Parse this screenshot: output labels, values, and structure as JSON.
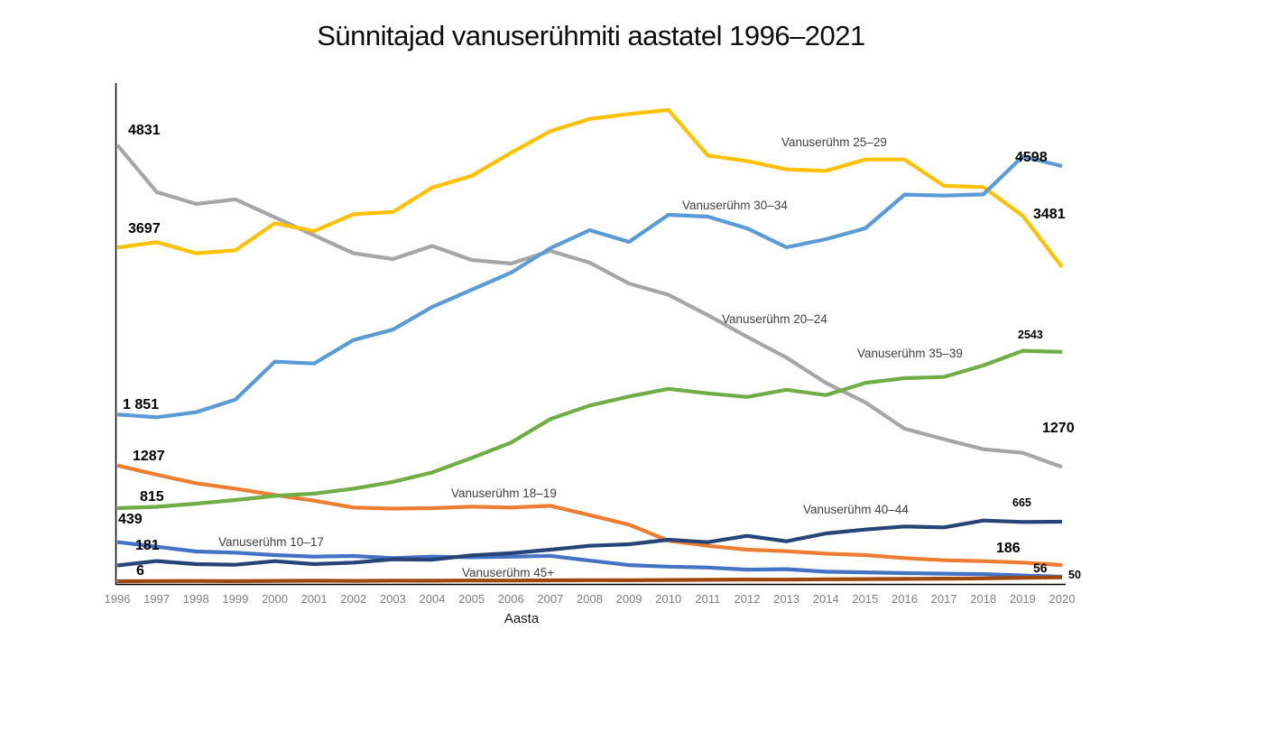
{
  "title": "Sünnitajad vanuserühmiti aastatel 1996–2021",
  "chart_data": {
    "type": "line",
    "title": "Sünnitajad vanuserühmiti aastatel 1996–2021",
    "xlabel": "Aasta",
    "ylabel": "",
    "grid": false,
    "legend_position": "inline-labels",
    "ylim": [
      0,
      5540
    ],
    "x": [
      1996,
      1997,
      1998,
      1999,
      2000,
      2001,
      2002,
      2003,
      2004,
      2005,
      2006,
      2007,
      2008,
      2009,
      2010,
      2011,
      2012,
      2013,
      2014,
      2015,
      2016,
      2017,
      2018,
      2019,
      2020
    ],
    "series": [
      {
        "name": "Vanuserühm 10–17",
        "color": "#4472C4",
        "values": [
          439,
          388,
          335,
          322,
          296,
          279,
          286,
          263,
          279,
          272,
          278,
          288,
          235,
          185,
          168,
          158,
          135,
          140,
          112,
          105,
          96,
          90,
          85,
          70,
          56
        ]
      },
      {
        "name": "Vanuserühm 18–19",
        "color": "#ED7D31",
        "values": [
          1287,
          1185,
          1090,
          1030,
          960,
          898,
          822,
          810,
          815,
          832,
          822,
          841,
          738,
          632,
          455,
          398,
          355,
          338,
          312,
          296,
          263,
          239,
          229,
          213,
          186
        ]
      },
      {
        "name": "Vanuserühm 20–24",
        "color": "#A6A6A6",
        "values": [
          4831,
          4312,
          4180,
          4230,
          4033,
          3833,
          3634,
          3570,
          3715,
          3560,
          3520,
          3660,
          3530,
          3300,
          3175,
          2950,
          2710,
          2480,
          2200,
          1986,
          1693,
          1577,
          1467,
          1427,
          1270
        ]
      },
      {
        "name": "Vanuserühm 25–29",
        "color": "#FFC000",
        "values": [
          3697,
          3757,
          3634,
          3667,
          3967,
          3880,
          4066,
          4090,
          4360,
          4490,
          4745,
          4985,
          5120,
          5175,
          5220,
          4715,
          4655,
          4562,
          4546,
          4672,
          4672,
          4380,
          4366,
          4050,
          3481
        ]
      },
      {
        "name": "Vanuserühm 30–34",
        "color": "#5B9BD5",
        "values": [
          1851,
          1820,
          1876,
          2016,
          2435,
          2415,
          2675,
          2790,
          3040,
          3230,
          3420,
          3690,
          3890,
          3760,
          4060,
          4040,
          3910,
          3700,
          3790,
          3910,
          4283,
          4272,
          4285,
          4706,
          4598
        ]
      },
      {
        "name": "Vanuserühm 35–39",
        "color": "#70AD47",
        "values": [
          815,
          830,
          865,
          905,
          950,
          975,
          1030,
          1105,
          1210,
          1370,
          1540,
          1800,
          1950,
          2050,
          2135,
          2085,
          2045,
          2125,
          2065,
          2200,
          2252,
          2266,
          2393,
          2555,
          2543
        ]
      },
      {
        "name": "Vanuserühm 40–44",
        "color": "#264478",
        "values": [
          181,
          230,
          196,
          189,
          229,
          196,
          213,
          250,
          245,
          293,
          316,
          355,
          398,
          415,
          465,
          438,
          508,
          448,
          535,
          578,
          612,
          602,
          678,
          662,
          665
        ]
      },
      {
        "name": "Vanuserühm 45+",
        "color": "#9E480E",
        "values": [
          6,
          8,
          9,
          7,
          10,
          12,
          10,
          13,
          12,
          15,
          14,
          16,
          18,
          17,
          20,
          22,
          25,
          24,
          28,
          30,
          32,
          35,
          38,
          45,
          50
        ]
      }
    ],
    "annotations": {
      "start": {
        "s20_24": "4831",
        "s25_29": "3697",
        "s30_34": "1 851",
        "s18_19": "1287",
        "s35_39": "815",
        "s10_17": "439",
        "s40_44": "181",
        "s45plus": "6"
      },
      "end": {
        "s30_34": "4598",
        "s25_29": "3481",
        "s35_39": "2543",
        "s20_24": "1270",
        "s40_44": "665",
        "s18_19": "186",
        "s10_17": "56",
        "s45plus": "50"
      }
    }
  }
}
